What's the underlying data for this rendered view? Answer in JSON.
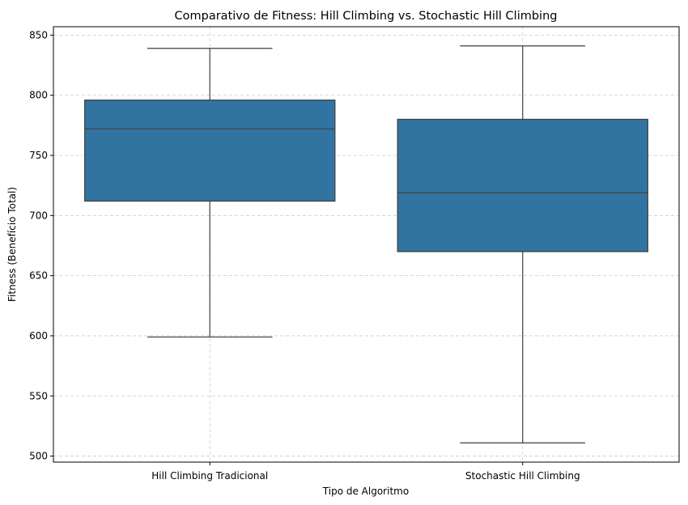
{
  "chart_data": {
    "type": "boxplot",
    "title": "Comparativo de Fitness: Hill Climbing vs. Stochastic Hill Climbing",
    "xlabel": "Tipo de Algoritmo",
    "ylabel": "Fitness (Benefício Total)",
    "ylim": [
      495,
      857
    ],
    "yticks": [
      500,
      550,
      600,
      650,
      700,
      750,
      800,
      850
    ],
    "grid": true,
    "categories": [
      "Hill Climbing Tradicional",
      "Stochastic Hill Climbing"
    ],
    "series": [
      {
        "category": "Hill Climbing Tradicional",
        "min": 599,
        "q1": 712,
        "median": 772,
        "q3": 796,
        "max": 839
      },
      {
        "category": "Stochastic Hill Climbing",
        "min": 511,
        "q1": 670,
        "median": 719,
        "q3": 780,
        "max": 841
      }
    ],
    "colors": {
      "box_fill": "#3274a1",
      "line": "#3f3f3f",
      "grid": "#cccccc"
    }
  }
}
